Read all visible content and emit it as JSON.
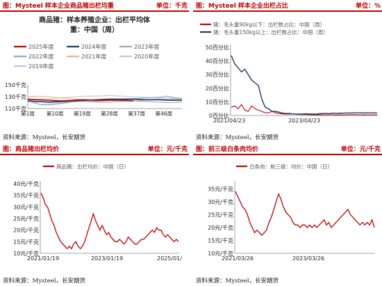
{
  "panels": {
    "tl": {
      "header": "图：Mysteel 样本企业商品猪出栏均重",
      "unit": "单位：千克",
      "source": "资料来源：Mysteel，长安期货"
    },
    "tr": {
      "header": "图：Mysteel 样本企业出栏占比",
      "unit": "单位：%",
      "source": "资料来源：Mysteel，长安期货"
    },
    "bl": {
      "header": "图：商品猪出栏均价",
      "unit": "单位：元/千克",
      "source": "资料来源：Mysteel，长安期货"
    },
    "br": {
      "header": "图：前三级白条肉均价",
      "unit": "单位：元/千克",
      "source": "资料来源：Mysteel，长安期货"
    }
  },
  "chart_data": [
    {
      "type": "line",
      "title": "商品猪：样本养殖企业：出栏平均体重：中国（周）",
      "title_line1": "商品猪：样本养殖企业：出栏平均体",
      "title_line2": "重：中国（周）",
      "x_ticks": [
        "第1周",
        "第10周",
        "第19周",
        "第28周",
        "第37周",
        "第46周"
      ],
      "x_tick_weeks": [
        1,
        10,
        19,
        28,
        37,
        46
      ],
      "x_range": [
        1,
        52
      ],
      "y_ticks": [
        "150千克",
        "130千克",
        "110千克"
      ],
      "ylim": [
        110,
        150
      ],
      "y_tick_values": [
        150,
        130,
        110
      ],
      "legend_placement": "top",
      "series": [
        {
          "name": "2025年度",
          "color": "#c00000",
          "width": 1.6,
          "x": [
            1,
            4,
            8,
            12,
            16,
            20,
            24,
            28,
            30,
            33,
            36
          ],
          "y": [
            126,
            125,
            124,
            123,
            124,
            125,
            124,
            124,
            124,
            124,
            123
          ]
        },
        {
          "name": "2024年度",
          "color": "#1f3864",
          "width": 1.6,
          "x": [
            1,
            4,
            8,
            12,
            16,
            20,
            24,
            28,
            32,
            36,
            40,
            44,
            48,
            52
          ],
          "y": [
            123,
            122,
            121,
            122,
            123,
            124,
            125,
            126,
            126,
            126,
            125,
            125,
            124,
            124
          ]
        },
        {
          "name": "2023年度",
          "color": "#a6a6a6",
          "width": 1.1,
          "x": [
            1,
            4,
            8,
            12,
            16,
            20,
            24,
            28,
            32,
            36,
            40,
            44,
            48,
            52
          ],
          "y": [
            124,
            122,
            120,
            121,
            122,
            122,
            121,
            121,
            122,
            123,
            122,
            121,
            120,
            121
          ]
        },
        {
          "name": "2022年度",
          "color": "#8ea9db",
          "width": 1.1,
          "x": [
            1,
            3,
            5,
            8,
            12,
            16,
            20,
            24,
            28,
            32,
            36,
            40,
            44,
            47,
            50,
            52
          ],
          "y": [
            125,
            121,
            117,
            117,
            119,
            122,
            122,
            123,
            124,
            126,
            127,
            128,
            129,
            131,
            128,
            126
          ]
        },
        {
          "name": "2021年度",
          "color": "#f4b183",
          "width": 1.1,
          "x": [
            1,
            4,
            8,
            12,
            16,
            20,
            24,
            28,
            32,
            36,
            40,
            44,
            48,
            52
          ],
          "y": [
            130,
            131,
            130,
            128,
            127,
            124,
            122,
            121,
            122,
            123,
            124,
            125,
            125,
            126
          ]
        },
        {
          "name": "2020年度",
          "color": "#c9c9c9",
          "width": 1.1,
          "x": [
            1,
            4,
            8,
            12,
            16,
            20,
            24,
            28,
            32,
            36,
            40,
            44,
            48,
            52
          ],
          "y": [
            125,
            126,
            127,
            128,
            130,
            131,
            131,
            132,
            131,
            130,
            129,
            128,
            128,
            128
          ]
        },
        {
          "name": "2019年度",
          "color": "#b4c7e7",
          "width": 1.1,
          "x": [
            1,
            4,
            6,
            8,
            12,
            16,
            20,
            24,
            28,
            32,
            36,
            40,
            44,
            48,
            52
          ],
          "y": [
            122,
            118,
            116,
            116,
            118,
            121,
            123,
            124,
            124,
            125,
            125,
            125,
            126,
            126,
            127
          ]
        }
      ]
    },
    {
      "type": "line",
      "x_ticks": [
        "2021/04/23",
        "2023/04/23"
      ],
      "y_ticks": [
        "50百分比",
        "40百分比",
        "30百分比",
        "20百分比",
        "10百分比",
        "0百分比"
      ],
      "y_tick_values": [
        50,
        40,
        30,
        20,
        10,
        0
      ],
      "ylim": [
        0,
        50
      ],
      "legend_placement": "top",
      "series": [
        {
          "name": "猪：毛头重90kg以下：出栏数占比：中国（周）",
          "color": "#c00000",
          "width": 1.1,
          "y": [
            6,
            7,
            5,
            8,
            4,
            3,
            7,
            5,
            4,
            3,
            2,
            2,
            3,
            2,
            1.5,
            1.2,
            1,
            1,
            1.2,
            1,
            0.8,
            0.7,
            0.8,
            0.6,
            0.5,
            0.5,
            0.6,
            0.4,
            0.5,
            0.5,
            0.5,
            0.4,
            0.5,
            0.4,
            0.5,
            0.5,
            0.6,
            0.5,
            0.5,
            0.4,
            0.5,
            0.5,
            0.5,
            0.5
          ]
        },
        {
          "name": "猪：毛头重150kg以上：出栏数占比：中国（周）",
          "color": "#1f3864",
          "width": 1.4,
          "y": [
            44,
            38,
            35,
            32,
            34,
            30,
            26,
            24,
            22,
            12,
            6,
            5,
            3,
            3,
            2.5,
            1.8,
            1.5,
            1.5,
            1.2,
            1,
            1,
            1,
            1.2,
            1.1,
            1,
            1,
            1.3,
            1.5,
            1.6,
            1.4,
            1.8,
            1.6,
            1.8,
            1.7,
            1.9,
            1.8,
            2,
            1.9,
            2,
            1.8,
            2,
            1.9,
            2,
            1.9
          ]
        }
      ]
    },
    {
      "type": "line",
      "x_ticks": [
        "2021/01/19",
        "2023/01/19",
        "2025/01/"
      ],
      "y_ticks": [
        "40元/千克",
        "35元/千克",
        "30元/千克",
        "25元/千克",
        "20元/千克",
        "15元/千克",
        "10元/千克"
      ],
      "y_tick_values": [
        40,
        35,
        30,
        25,
        20,
        15,
        10
      ],
      "ylim": [
        10,
        40
      ],
      "legend_placement": "top",
      "series": [
        {
          "name": "商品猪：出栏均价：中国（日）",
          "color": "#c00000",
          "width": 1.3,
          "y": [
            36,
            34,
            31,
            30,
            27,
            24,
            22,
            19,
            17,
            15,
            14,
            13,
            12,
            13,
            12,
            14,
            15,
            13,
            12,
            13,
            15,
            18,
            21,
            24,
            27,
            24,
            22,
            20,
            22,
            20,
            18,
            19,
            17,
            16,
            15,
            15,
            16,
            15,
            14,
            15,
            17,
            16,
            15,
            14,
            14,
            15,
            16,
            16,
            17,
            18,
            19,
            20,
            19,
            21,
            20,
            20,
            18,
            17,
            18,
            17,
            16,
            15,
            16,
            15
          ]
        }
      ]
    },
    {
      "type": "line",
      "x_ticks": [
        "2021/03/26",
        "2023/03/26"
      ],
      "y_ticks": [
        "35元/千克",
        "30元/千克",
        "25元/千克",
        "20元/千克",
        "15元/千克",
        "10元/千克"
      ],
      "y_tick_values": [
        35,
        30,
        25,
        20,
        15,
        10
      ],
      "ylim": [
        10,
        37
      ],
      "legend_placement": "top",
      "series": [
        {
          "name": "白条肉：前三级：均价：中国（日）",
          "color": "#c00000",
          "width": 1.3,
          "y": [
            34,
            32,
            30,
            28,
            27,
            25,
            22,
            20,
            18,
            19,
            18,
            17,
            18,
            19,
            22,
            24,
            27,
            30,
            33,
            31,
            28,
            26,
            25,
            24,
            22,
            21,
            21,
            20,
            21,
            21,
            20,
            21,
            20,
            21,
            20,
            21,
            22,
            23,
            21,
            22,
            20,
            21,
            22,
            23,
            24,
            25,
            26,
            27,
            25,
            24,
            23,
            22,
            21,
            22,
            21,
            22,
            21,
            23,
            20
          ]
        }
      ]
    }
  ]
}
